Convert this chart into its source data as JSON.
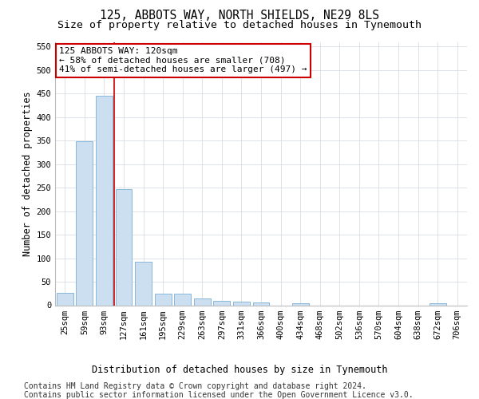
{
  "title1": "125, ABBOTS WAY, NORTH SHIELDS, NE29 8LS",
  "title2": "Size of property relative to detached houses in Tynemouth",
  "xlabel": "Distribution of detached houses by size in Tynemouth",
  "ylabel": "Number of detached properties",
  "categories": [
    "25sqm",
    "59sqm",
    "93sqm",
    "127sqm",
    "161sqm",
    "195sqm",
    "229sqm",
    "263sqm",
    "297sqm",
    "331sqm",
    "366sqm",
    "400sqm",
    "434sqm",
    "468sqm",
    "502sqm",
    "536sqm",
    "570sqm",
    "604sqm",
    "638sqm",
    "672sqm",
    "706sqm"
  ],
  "values": [
    27,
    349,
    445,
    247,
    93,
    25,
    25,
    14,
    10,
    7,
    6,
    0,
    5,
    0,
    0,
    0,
    0,
    0,
    0,
    5,
    0
  ],
  "bar_color": "#ccdff0",
  "bar_edge_color": "#7bafd4",
  "grid_color": "#d0d8e0",
  "annotation_line1": "125 ABBOTS WAY: 120sqm",
  "annotation_line2": "← 58% of detached houses are smaller (708)",
  "annotation_line3": "41% of semi-detached houses are larger (497) →",
  "vline_x_index": 2.5,
  "annotation_box_color": "#ffffff",
  "annotation_box_edge_color": "#cc0000",
  "vline_color": "#cc0000",
  "footnote1": "Contains HM Land Registry data © Crown copyright and database right 2024.",
  "footnote2": "Contains public sector information licensed under the Open Government Licence v3.0.",
  "ylim": [
    0,
    560
  ],
  "yticks": [
    0,
    50,
    100,
    150,
    200,
    250,
    300,
    350,
    400,
    450,
    500,
    550
  ],
  "title_fontsize": 10.5,
  "subtitle_fontsize": 9.5,
  "axis_label_fontsize": 8.5,
  "tick_fontsize": 7.5,
  "annotation_fontsize": 8,
  "footnote_fontsize": 7
}
